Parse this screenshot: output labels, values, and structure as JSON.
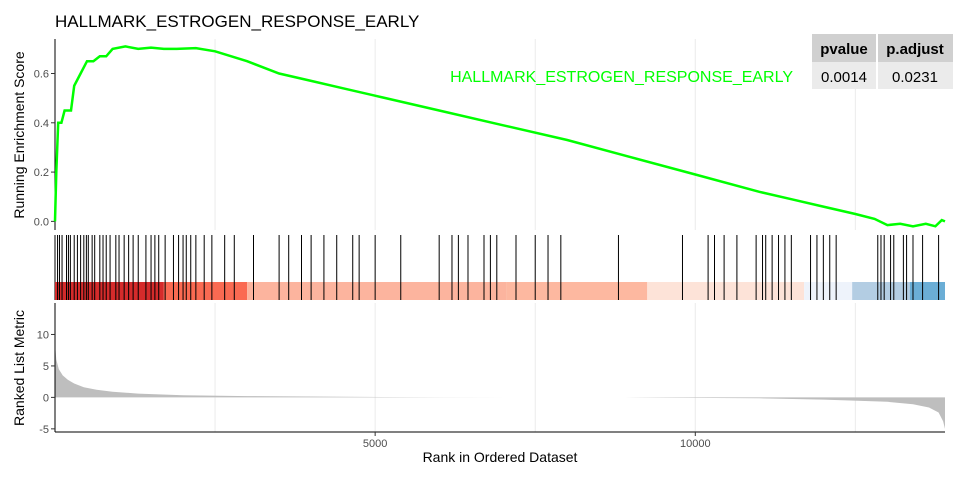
{
  "chart_data": {
    "type": "line",
    "title": "HALLMARK_ESTROGEN_RESPONSE_EARLY",
    "xlabel": "Rank in Ordered Dataset",
    "ylabel_top": "Running Enrichment Score",
    "ylabel_bottom": "Ranked List Metric",
    "xlim": [
      0,
      13900
    ],
    "x_ticks": [
      5000,
      10000
    ],
    "es_ylim": [
      -0.035,
      0.74
    ],
    "es_y_ticks": [
      0.0,
      0.2,
      0.4,
      0.6
    ],
    "metric_ylim": [
      -5.5,
      15
    ],
    "metric_y_ticks": [
      -5,
      0,
      5,
      10
    ],
    "series_label": "HALLMARK_ESTROGEN_RESPONSE_EARLY",
    "series_color": "#00FF00",
    "stats_table": {
      "headers": [
        "pvalue",
        "p.adjust"
      ],
      "values": [
        "0.0014",
        "0.0231"
      ]
    },
    "running_es": {
      "x": [
        0,
        20,
        50,
        100,
        150,
        250,
        300,
        400,
        500,
        600,
        700,
        800,
        900,
        1100,
        1300,
        1500,
        1700,
        1900,
        2200,
        2500,
        3000,
        3500,
        4000,
        4500,
        5000,
        6000,
        7000,
        8000,
        9000,
        10000,
        11000,
        11500,
        12000,
        12500,
        12800,
        13000,
        13200,
        13400,
        13600,
        13750,
        13850,
        13900
      ],
      "y": [
        0.0,
        0.2,
        0.4,
        0.4,
        0.45,
        0.45,
        0.55,
        0.6,
        0.65,
        0.65,
        0.67,
        0.67,
        0.7,
        0.71,
        0.7,
        0.705,
        0.7,
        0.7,
        0.703,
        0.69,
        0.65,
        0.6,
        0.57,
        0.54,
        0.51,
        0.45,
        0.39,
        0.33,
        0.26,
        0.19,
        0.12,
        0.09,
        0.06,
        0.03,
        0.01,
        -0.015,
        -0.01,
        -0.02,
        -0.01,
        -0.02,
        0.005,
        0.0
      ]
    },
    "hit_ranks": [
      40,
      70,
      110,
      180,
      210,
      240,
      300,
      350,
      400,
      450,
      490,
      520,
      580,
      620,
      700,
      750,
      800,
      860,
      950,
      1000,
      1080,
      1150,
      1220,
      1300,
      1420,
      1500,
      1560,
      1620,
      1720,
      1850,
      1930,
      2000,
      2050,
      2120,
      2200,
      2330,
      2450,
      2650,
      2800,
      3100,
      3500,
      3650,
      3850,
      4000,
      4200,
      4400,
      4650,
      4750,
      5000,
      5400,
      6000,
      6200,
      6300,
      6450,
      6700,
      6800,
      6900,
      7200,
      7500,
      7700,
      7900,
      8800,
      9800,
      10200,
      10300,
      10450,
      10650,
      10950,
      11050,
      11100,
      11200,
      11300,
      11400,
      11500,
      11800,
      11900,
      12000,
      12100,
      12200,
      12850,
      12900,
      12950,
      13050,
      13100,
      13250,
      13300,
      13400,
      13550,
      13800
    ],
    "color_band": {
      "breaks": [
        0,
        1700,
        3000,
        7050,
        9250,
        11700,
        12450,
        13350,
        13900
      ],
      "colors": [
        "#D52B2B",
        "#FA6A52",
        "#FCB49E",
        "#FDB8A0",
        "#FDE3D8",
        "#EEF3FB",
        "#B3CDE3",
        "#6BAED6",
        "#3182BD"
      ]
    },
    "ranked_metric": {
      "x": [
        0,
        20,
        60,
        120,
        200,
        300,
        450,
        650,
        900,
        1300,
        2000,
        3000,
        4500,
        6000,
        7500,
        8900,
        9600,
        11000,
        12000,
        13000,
        13400,
        13650,
        13800,
        13870,
        13900
      ],
      "y": [
        8.5,
        6.0,
        4.5,
        3.5,
        2.8,
        2.2,
        1.6,
        1.2,
        0.9,
        0.6,
        0.35,
        0.2,
        0.1,
        0.03,
        0.0,
        0.0,
        -0.05,
        -0.15,
        -0.35,
        -0.7,
        -1.1,
        -1.6,
        -2.4,
        -3.8,
        -5.0
      ]
    }
  }
}
